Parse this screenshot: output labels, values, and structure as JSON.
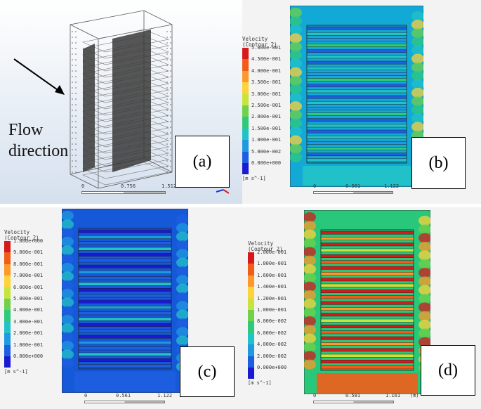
{
  "panels": {
    "a": {
      "label": "(a)",
      "flow_text_line1": "Flow",
      "flow_text_line2": "direction",
      "scale": {
        "t0": "0",
        "t1": "0.756",
        "t2": "1.512"
      }
    },
    "b": {
      "label": "(b)",
      "legend_title": "Velocity",
      "legend_sub": "(Contour 2)",
      "legend_values": [
        "5.000e-001",
        "4.500e-001",
        "4.000e-001",
        "3.500e-001",
        "3.000e-001",
        "2.500e-001",
        "2.000e-001",
        "1.500e-001",
        "1.000e-001",
        "5.000e-002",
        "0.000e+000"
      ],
      "unit": "[m s^-1]",
      "scale": {
        "t0": "0",
        "t1": "0.561",
        "t2": "1.122",
        "t3": "(m)"
      }
    },
    "c": {
      "label": "(c)",
      "legend_title": "Velocity",
      "legend_sub": "(Contour 2)",
      "legend_values": [
        "1.000e+000",
        "9.000e-001",
        "8.000e-001",
        "7.000e-001",
        "6.000e-001",
        "5.000e-001",
        "4.000e-001",
        "3.000e-001",
        "2.000e-001",
        "1.000e-001",
        "0.000e+000"
      ],
      "unit": "[m s^-1]",
      "scale": {
        "t0": "0",
        "t1": "0.561",
        "t2": "1.122",
        "t3": "(m)"
      }
    },
    "d": {
      "label": "(d)",
      "legend_title": "Velocity",
      "legend_sub": "(Contour 2)",
      "legend_values": [
        "2.000e-001",
        "1.800e-001",
        "1.600e-001",
        "1.400e-001",
        "1.200e-001",
        "1.000e-001",
        "8.000e-002",
        "6.000e-002",
        "4.000e-002",
        "2.000e-002",
        "0.000e+000"
      ],
      "unit": "[m s^-1]",
      "scale": {
        "t0": "0",
        "t1": "0.581",
        "t2": "1.161",
        "t3": "(m)"
      }
    }
  },
  "colormap": [
    "#d7191c",
    "#f25c19",
    "#fb9a2a",
    "#fdd33a",
    "#c7e43c",
    "#6fd24a",
    "#2fc97c",
    "#22c3c8",
    "#1f9ae0",
    "#1d5fe0",
    "#1a1ad0"
  ],
  "contour_colors": {
    "bg_b": "#13a9d6",
    "bg_c": "#1558d8",
    "bg_d": "#29c77a"
  }
}
